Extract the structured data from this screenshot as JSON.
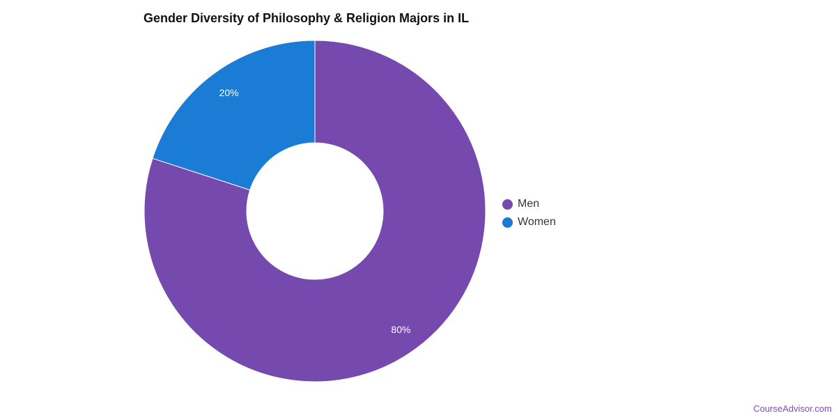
{
  "chart_data": {
    "type": "pie",
    "style": "donut",
    "title": "Gender Diversity of Philosophy & Religion Majors in IL",
    "categories": [
      "Men",
      "Women"
    ],
    "values": [
      80,
      20
    ],
    "labels": [
      "80%",
      "20%"
    ],
    "colors": [
      "#7649ae",
      "#1a7cd4"
    ],
    "legend": "right"
  },
  "footer": {
    "source": "CourseAdvisor.com"
  }
}
